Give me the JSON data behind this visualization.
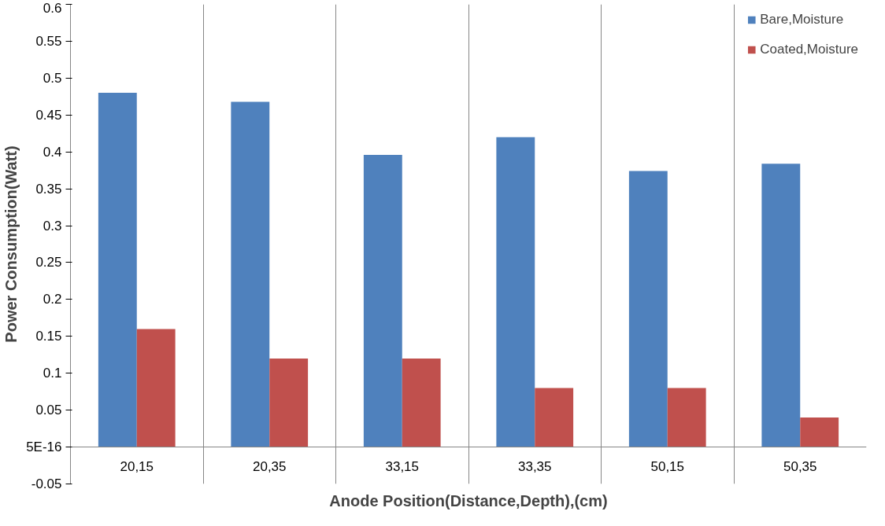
{
  "chart_data": {
    "type": "bar",
    "xlabel": "Anode Position(Distance,Depth),(cm)",
    "ylabel": "Power Consumption(Watt)",
    "categories": [
      "20,15",
      "20,35",
      "33,15",
      "33,35",
      "50,15",
      "50,35"
    ],
    "series": [
      {
        "name": "Bare,Moisture",
        "color": "#4f81bd",
        "values": [
          0.48,
          0.468,
          0.396,
          0.42,
          0.374,
          0.384
        ]
      },
      {
        "name": "Coated,Moisture",
        "color": "#c0504d",
        "values": [
          0.16,
          0.12,
          0.12,
          0.08,
          0.08,
          0.04
        ]
      }
    ],
    "ylim": [
      -0.05,
      0.6
    ],
    "yticks": [
      -0.05,
      {
        "value": 0,
        "label": "5E-16"
      },
      0.05,
      0.1,
      0.15,
      0.2,
      0.25,
      0.3,
      0.35,
      0.4,
      0.45,
      0.5,
      0.55,
      0.6
    ],
    "grid": "x",
    "legend": "top right"
  }
}
